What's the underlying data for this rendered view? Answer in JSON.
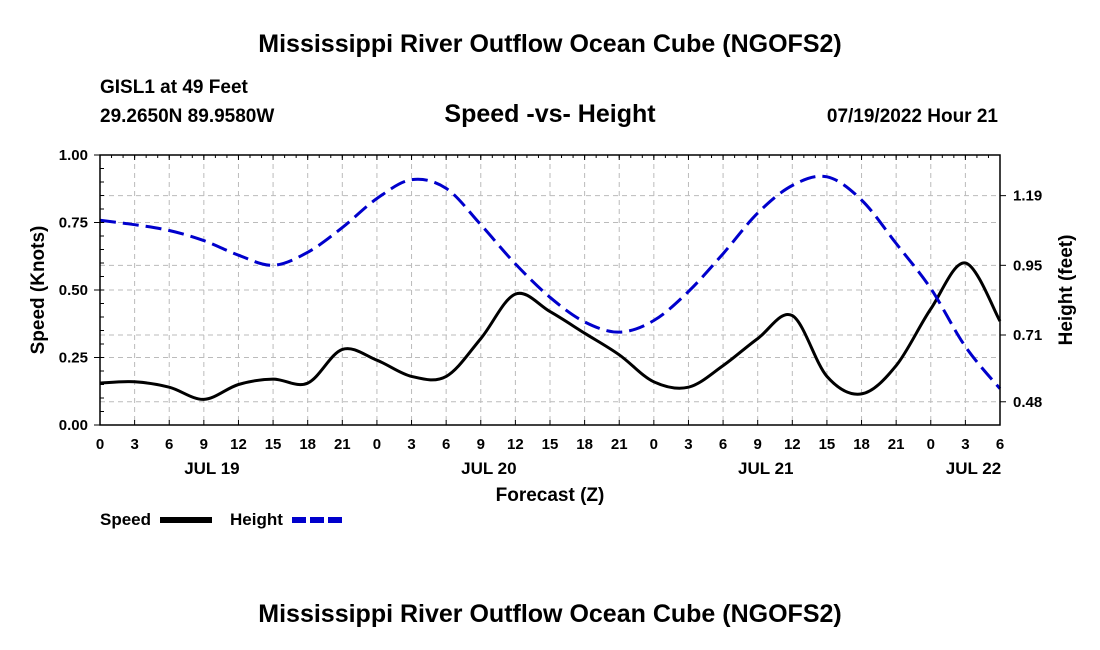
{
  "header": {
    "title": "Mississippi River Outflow Ocean Cube (NGOFS2)",
    "station_name": "GISL1 at 49 Feet",
    "station_coords": "29.2650N  89.9580W",
    "subtitle": "Speed -vs- Height",
    "datetime": "07/19/2022 Hour 21"
  },
  "footer": {
    "title": "Mississippi River Outflow Ocean Cube (NGOFS2)"
  },
  "legend": {
    "speed_label": "Speed",
    "height_label": "Height"
  },
  "colors": {
    "speed": "#000000",
    "height": "#0000cc",
    "grid": "#bbbbbb"
  },
  "chart_data": {
    "type": "line",
    "title": "Speed -vs- Height",
    "xlabel": "Forecast (Z)",
    "ylabel_left": "Speed (Knots)",
    "ylabel_right": "Height (feet)",
    "x_unit": "hours since 07/19 00Z",
    "xlim": [
      0,
      78
    ],
    "ylim_left": [
      0,
      1.0
    ],
    "ylim_right": [
      0.4,
      1.33
    ],
    "x_ticks": [
      0,
      3,
      6,
      9,
      12,
      15,
      18,
      21,
      24,
      27,
      30,
      33,
      36,
      39,
      42,
      45,
      48,
      51,
      54,
      57,
      60,
      63,
      66,
      69,
      72,
      75,
      78
    ],
    "x_tick_labels": [
      "0",
      "3",
      "6",
      "9",
      "12",
      "15",
      "18",
      "21",
      "0",
      "3",
      "6",
      "9",
      "12",
      "15",
      "18",
      "21",
      "0",
      "3",
      "6",
      "9",
      "12",
      "15",
      "18",
      "21",
      "0",
      "3",
      "6"
    ],
    "date_labels": [
      {
        "x": 9.7,
        "label": "JUL 19"
      },
      {
        "x": 33.7,
        "label": "JUL 20"
      },
      {
        "x": 57.7,
        "label": "JUL 21"
      },
      {
        "x": 75.7,
        "label": "JUL 22"
      }
    ],
    "y_left_ticks": [
      0.0,
      0.25,
      0.5,
      0.75,
      1.0
    ],
    "y_left_tick_labels": [
      "0.00",
      "0.25",
      "0.50",
      "0.75",
      "1.00"
    ],
    "y_right_ticks": [
      0.48,
      0.71,
      0.95,
      1.19
    ],
    "y_right_tick_labels": [
      "0.48",
      "0.71",
      "0.95",
      "1.19"
    ],
    "grid": true,
    "series": [
      {
        "name": "Speed",
        "axis": "left",
        "style": "solid",
        "x": [
          0,
          3,
          6,
          9,
          12,
          15,
          18,
          21,
          24,
          27,
          30,
          33,
          36,
          39,
          42,
          45,
          48,
          51,
          54,
          57,
          60,
          63,
          66,
          69,
          72,
          75,
          78
        ],
        "values": [
          0.155,
          0.16,
          0.14,
          0.095,
          0.15,
          0.17,
          0.155,
          0.28,
          0.24,
          0.18,
          0.18,
          0.32,
          0.485,
          0.42,
          0.34,
          0.26,
          0.16,
          0.14,
          0.22,
          0.32,
          0.405,
          0.18,
          0.115,
          0.22,
          0.43,
          0.6,
          0.385
        ]
      },
      {
        "name": "Height",
        "axis": "right",
        "style": "dashed",
        "x": [
          0,
          3,
          6,
          9,
          12,
          15,
          18,
          21,
          24,
          27,
          30,
          33,
          36,
          39,
          42,
          45,
          48,
          51,
          54,
          57,
          60,
          63,
          66,
          69,
          72,
          75,
          78
        ],
        "values": [
          1.105,
          1.09,
          1.07,
          1.035,
          0.985,
          0.95,
          0.995,
          1.08,
          1.18,
          1.245,
          1.215,
          1.09,
          0.955,
          0.84,
          0.755,
          0.72,
          0.76,
          0.86,
          0.99,
          1.13,
          1.225,
          1.255,
          1.175,
          1.025,
          0.87,
          0.67,
          0.525
        ]
      }
    ]
  }
}
